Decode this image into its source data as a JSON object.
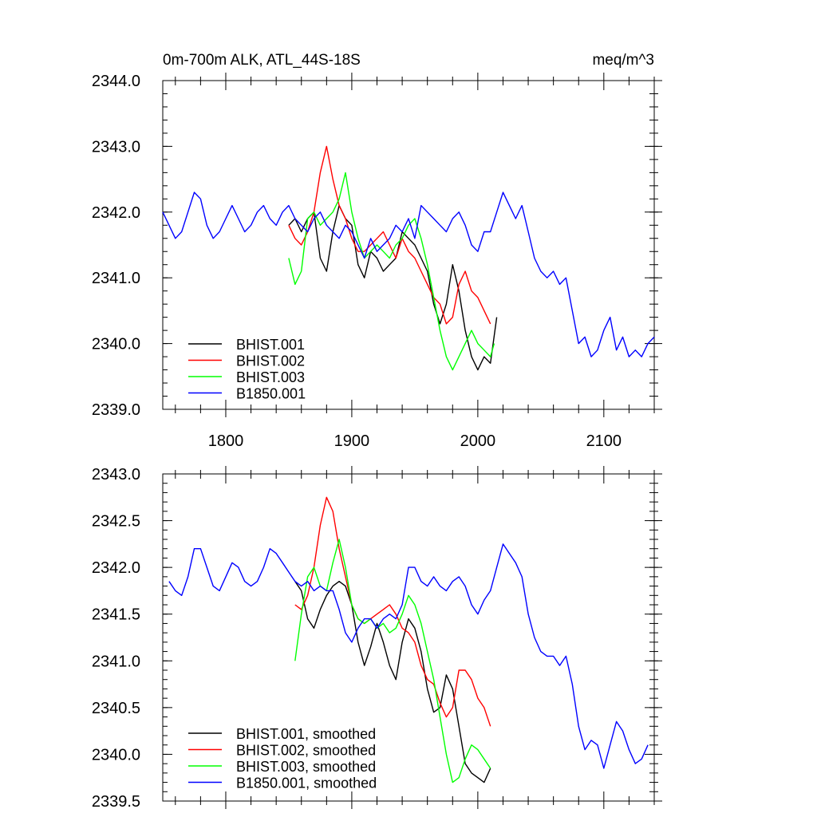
{
  "chart_data": [
    {
      "type": "line",
      "title": "0m-700m ALK, ATL_44S-18S",
      "units": "meq/m^3",
      "xlim": [
        1750,
        2140
      ],
      "ylim": [
        2339.0,
        2344.0
      ],
      "x_ticks": [
        1800,
        1900,
        2000,
        2100
      ],
      "y_ticks": [
        2339.0,
        2340.0,
        2341.0,
        2342.0,
        2343.0,
        2344.0
      ],
      "x_tick_labels": [
        "1800",
        "1900",
        "2000",
        "2100"
      ],
      "y_tick_labels": [
        "2339.0",
        "2340.0",
        "2341.0",
        "2342.0",
        "2343.0",
        "2344.0"
      ],
      "grid": false,
      "legend_position": "bottom-left",
      "series": [
        {
          "name": "BHIST.001",
          "color": "#000000",
          "x": [
            1850,
            1855,
            1860,
            1865,
            1870,
            1875,
            1880,
            1885,
            1890,
            1895,
            1900,
            1905,
            1910,
            1915,
            1920,
            1925,
            1930,
            1935,
            1940,
            1945,
            1950,
            1955,
            1960,
            1965,
            1970,
            1975,
            1980,
            1985,
            1990,
            1995,
            2000,
            2005,
            2010,
            2015
          ],
          "y": [
            2341.8,
            2341.9,
            2341.7,
            2341.9,
            2342.0,
            2341.3,
            2341.1,
            2341.7,
            2342.1,
            2341.9,
            2341.8,
            2341.2,
            2341.0,
            2341.4,
            2341.3,
            2341.1,
            2341.2,
            2341.3,
            2341.7,
            2341.6,
            2341.5,
            2341.3,
            2341.1,
            2340.6,
            2340.3,
            2340.6,
            2341.2,
            2340.8,
            2340.2,
            2339.8,
            2339.6,
            2339.8,
            2339.7,
            2340.4
          ]
        },
        {
          "name": "BHIST.002",
          "color": "#ff0000",
          "x": [
            1850,
            1855,
            1860,
            1865,
            1870,
            1875,
            1880,
            1885,
            1890,
            1895,
            1900,
            1905,
            1910,
            1915,
            1920,
            1925,
            1930,
            1935,
            1940,
            1945,
            1950,
            1955,
            1960,
            1965,
            1970,
            1975,
            1980,
            1985,
            1990,
            1995,
            2000,
            2005,
            2010
          ],
          "y": [
            2341.8,
            2341.6,
            2341.5,
            2341.7,
            2342.0,
            2342.6,
            2343.0,
            2342.5,
            2342.1,
            2341.9,
            2341.6,
            2341.4,
            2341.4,
            2341.5,
            2341.6,
            2341.7,
            2341.5,
            2341.3,
            2341.6,
            2341.4,
            2341.3,
            2341.1,
            2340.9,
            2340.7,
            2340.6,
            2340.3,
            2340.4,
            2340.9,
            2341.1,
            2340.8,
            2340.7,
            2340.5,
            2340.3
          ]
        },
        {
          "name": "BHIST.003",
          "color": "#00ff00",
          "x": [
            1850,
            1855,
            1860,
            1865,
            1870,
            1875,
            1880,
            1885,
            1890,
            1895,
            1900,
            1905,
            1910,
            1915,
            1920,
            1925,
            1930,
            1935,
            1940,
            1945,
            1950,
            1955,
            1960,
            1965,
            1970,
            1975,
            1980,
            1985,
            1990,
            1995,
            2000,
            2005,
            2010,
            2013
          ],
          "y": [
            2341.3,
            2340.9,
            2341.1,
            2341.9,
            2342.0,
            2341.8,
            2341.9,
            2342.0,
            2342.2,
            2342.6,
            2342.0,
            2341.6,
            2341.3,
            2341.4,
            2341.5,
            2341.4,
            2341.3,
            2341.5,
            2341.6,
            2341.8,
            2341.9,
            2341.6,
            2341.2,
            2340.7,
            2340.2,
            2339.8,
            2339.6,
            2339.8,
            2340.0,
            2340.2,
            2340.0,
            2339.9,
            2339.8,
            2340.0
          ]
        },
        {
          "name": "B1850.001",
          "color": "#0000ff",
          "x": [
            1750,
            1755,
            1760,
            1765,
            1770,
            1775,
            1780,
            1785,
            1790,
            1795,
            1800,
            1805,
            1810,
            1815,
            1820,
            1825,
            1830,
            1835,
            1840,
            1845,
            1850,
            1855,
            1860,
            1865,
            1870,
            1875,
            1880,
            1885,
            1890,
            1895,
            1900,
            1905,
            1910,
            1915,
            1920,
            1925,
            1930,
            1935,
            1940,
            1945,
            1950,
            1955,
            1960,
            1965,
            1970,
            1975,
            1980,
            1985,
            1990,
            1995,
            2000,
            2005,
            2010,
            2015,
            2020,
            2025,
            2030,
            2035,
            2040,
            2045,
            2050,
            2055,
            2060,
            2065,
            2070,
            2075,
            2080,
            2085,
            2090,
            2095,
            2100,
            2105,
            2110,
            2115,
            2120,
            2125,
            2130,
            2135,
            2140
          ],
          "y": [
            2342.0,
            2341.8,
            2341.6,
            2341.7,
            2342.0,
            2342.3,
            2342.2,
            2341.8,
            2341.6,
            2341.7,
            2341.9,
            2342.1,
            2341.9,
            2341.7,
            2341.8,
            2342.0,
            2342.1,
            2341.9,
            2341.8,
            2342.0,
            2342.1,
            2341.9,
            2341.8,
            2341.7,
            2341.9,
            2342.0,
            2341.8,
            2341.7,
            2341.6,
            2341.8,
            2341.7,
            2341.5,
            2341.3,
            2341.6,
            2341.4,
            2341.5,
            2341.6,
            2341.8,
            2341.7,
            2341.9,
            2341.6,
            2342.1,
            2342.0,
            2341.9,
            2341.8,
            2341.7,
            2341.9,
            2342.0,
            2341.8,
            2341.5,
            2341.4,
            2341.7,
            2341.7,
            2342.0,
            2342.3,
            2342.1,
            2341.9,
            2342.1,
            2341.7,
            2341.3,
            2341.1,
            2341.0,
            2341.1,
            2340.9,
            2341.0,
            2340.5,
            2340.0,
            2340.1,
            2339.8,
            2339.9,
            2340.2,
            2340.4,
            2339.9,
            2340.1,
            2339.8,
            2339.9,
            2339.8,
            2340.0,
            2340.1
          ]
        }
      ]
    },
    {
      "type": "line",
      "title": "",
      "xlim": [
        1750,
        2140
      ],
      "ylim": [
        2339.5,
        2343.0
      ],
      "x_ticks": [
        1800,
        1900,
        2000,
        2100
      ],
      "y_ticks": [
        2339.5,
        2340.0,
        2340.5,
        2341.0,
        2341.5,
        2342.0,
        2342.5,
        2343.0
      ],
      "y_tick_labels": [
        "2339.5",
        "2340.0",
        "2340.5",
        "2341.0",
        "2341.5",
        "2342.0",
        "2342.5",
        "2343.0"
      ],
      "grid": false,
      "legend_position": "bottom-left",
      "series": [
        {
          "name": "BHIST.001, smoothed",
          "color": "#000000",
          "x": [
            1855,
            1860,
            1865,
            1870,
            1875,
            1880,
            1885,
            1890,
            1895,
            1900,
            1905,
            1910,
            1915,
            1920,
            1925,
            1930,
            1935,
            1940,
            1945,
            1950,
            1955,
            1960,
            1965,
            1970,
            1975,
            1980,
            1985,
            1990,
            1995,
            2000,
            2005,
            2010
          ],
          "y": [
            2341.85,
            2341.75,
            2341.45,
            2341.35,
            2341.55,
            2341.7,
            2341.8,
            2341.85,
            2341.8,
            2341.6,
            2341.2,
            2340.95,
            2341.15,
            2341.4,
            2341.2,
            2340.95,
            2340.8,
            2341.2,
            2341.45,
            2341.35,
            2341.1,
            2340.7,
            2340.45,
            2340.5,
            2340.85,
            2340.7,
            2340.3,
            2339.9,
            2339.8,
            2339.75,
            2339.7,
            2339.85
          ]
        },
        {
          "name": "BHIST.002, smoothed",
          "color": "#ff0000",
          "x": [
            1855,
            1860,
            1865,
            1870,
            1875,
            1880,
            1885,
            1890,
            1895,
            1900,
            1905,
            1910,
            1915,
            1920,
            1925,
            1930,
            1935,
            1940,
            1945,
            1950,
            1955,
            1960,
            1965,
            1970,
            1975,
            1980,
            1985,
            1990,
            1995,
            2000,
            2005,
            2010
          ],
          "y": [
            2341.6,
            2341.55,
            2341.7,
            2342.0,
            2342.45,
            2342.75,
            2342.6,
            2342.2,
            2341.9,
            2341.6,
            2341.45,
            2341.4,
            2341.45,
            2341.5,
            2341.55,
            2341.6,
            2341.5,
            2341.35,
            2341.3,
            2341.2,
            2340.95,
            2340.8,
            2340.75,
            2340.55,
            2340.4,
            2340.5,
            2340.9,
            2340.9,
            2340.8,
            2340.6,
            2340.5,
            2340.3
          ]
        },
        {
          "name": "BHIST.003, smoothed",
          "color": "#00ff00",
          "x": [
            1855,
            1860,
            1865,
            1870,
            1875,
            1880,
            1885,
            1890,
            1895,
            1900,
            1905,
            1910,
            1915,
            1920,
            1925,
            1930,
            1935,
            1940,
            1945,
            1950,
            1955,
            1960,
            1965,
            1970,
            1975,
            1980,
            1985,
            1990,
            1995,
            2000,
            2005,
            2010
          ],
          "y": [
            2341.0,
            2341.5,
            2341.9,
            2342.0,
            2341.8,
            2341.75,
            2342.05,
            2342.3,
            2342.0,
            2341.6,
            2341.45,
            2341.4,
            2341.45,
            2341.35,
            2341.4,
            2341.3,
            2341.35,
            2341.5,
            2341.7,
            2341.6,
            2341.4,
            2341.1,
            2340.8,
            2340.4,
            2340.0,
            2339.7,
            2339.75,
            2339.95,
            2340.1,
            2340.05,
            2339.95,
            2339.85
          ]
        },
        {
          "name": "B1850.001, smoothed",
          "color": "#0000ff",
          "x": [
            1755,
            1760,
            1765,
            1770,
            1775,
            1780,
            1785,
            1790,
            1795,
            1800,
            1805,
            1810,
            1815,
            1820,
            1825,
            1830,
            1835,
            1840,
            1845,
            1850,
            1855,
            1860,
            1865,
            1870,
            1875,
            1880,
            1885,
            1890,
            1895,
            1900,
            1905,
            1910,
            1915,
            1920,
            1925,
            1930,
            1935,
            1940,
            1945,
            1950,
            1955,
            1960,
            1965,
            1970,
            1975,
            1980,
            1985,
            1990,
            1995,
            2000,
            2005,
            2010,
            2015,
            2020,
            2025,
            2030,
            2035,
            2040,
            2045,
            2050,
            2055,
            2060,
            2065,
            2070,
            2075,
            2080,
            2085,
            2090,
            2095,
            2100,
            2105,
            2110,
            2115,
            2120,
            2125,
            2130,
            2135
          ],
          "y": [
            2341.85,
            2341.75,
            2341.7,
            2341.9,
            2342.2,
            2342.2,
            2342.0,
            2341.8,
            2341.75,
            2341.9,
            2342.05,
            2342.0,
            2341.85,
            2341.8,
            2341.85,
            2342.0,
            2342.2,
            2342.15,
            2342.05,
            2341.95,
            2341.85,
            2341.8,
            2341.85,
            2341.75,
            2341.8,
            2341.75,
            2341.75,
            2341.55,
            2341.3,
            2341.2,
            2341.35,
            2341.45,
            2341.45,
            2341.35,
            2341.45,
            2341.5,
            2341.45,
            2341.6,
            2342.0,
            2342.0,
            2341.85,
            2341.8,
            2341.9,
            2341.8,
            2341.75,
            2341.85,
            2341.9,
            2341.8,
            2341.6,
            2341.5,
            2341.65,
            2341.75,
            2342.0,
            2342.25,
            2342.15,
            2342.05,
            2341.9,
            2341.5,
            2341.25,
            2341.1,
            2341.05,
            2341.05,
            2340.95,
            2341.05,
            2340.75,
            2340.3,
            2340.05,
            2340.15,
            2340.1,
            2339.85,
            2340.1,
            2340.35,
            2340.25,
            2340.05,
            2339.9,
            2339.95,
            2340.1
          ]
        }
      ]
    }
  ]
}
